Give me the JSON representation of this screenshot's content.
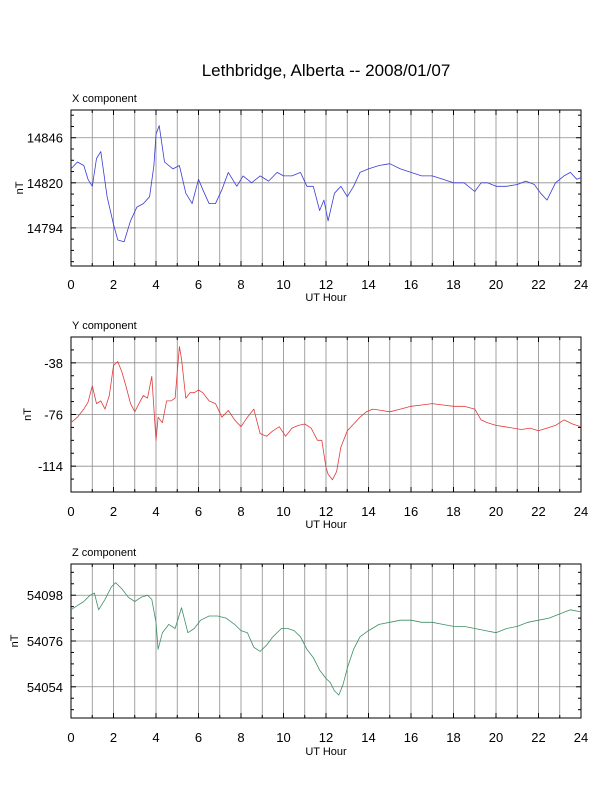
{
  "figure": {
    "title": "Lethbridge, Alberta -- 2008/01/07"
  },
  "chart_data": [
    {
      "type": "line",
      "title": "X component",
      "xlabel": "UT Hour",
      "ylabel": "nT",
      "xlim": [
        0,
        24
      ],
      "ylim": [
        14772,
        14862
      ],
      "xticks": [
        0,
        2,
        4,
        6,
        8,
        10,
        12,
        14,
        16,
        18,
        20,
        22,
        24
      ],
      "yticks": [
        14794,
        14820,
        14846
      ],
      "grid": true,
      "color": "#3a3ad9",
      "series": [
        {
          "x": [
            0,
            0.3,
            0.6,
            0.8,
            1.0,
            1.2,
            1.4,
            1.7,
            2.0,
            2.2,
            2.5,
            2.8,
            3.1,
            3.4,
            3.7,
            3.9,
            4.0,
            4.15,
            4.4,
            4.8,
            5.1,
            5.4,
            5.7,
            6.0,
            6.2,
            6.5,
            6.8,
            7.1,
            7.4,
            7.8,
            8.1,
            8.5,
            8.9,
            9.3,
            9.7,
            10.0,
            10.4,
            10.8,
            11.1,
            11.4,
            11.7,
            11.9,
            12.1,
            12.4,
            12.7,
            13.0,
            13.3,
            13.6,
            14.0,
            14.5,
            15.0,
            15.5,
            16.0,
            16.5,
            17.0,
            17.5,
            18.0,
            18.5,
            19.0,
            19.3,
            19.6,
            20.0,
            20.5,
            21.0,
            21.4,
            21.8,
            22.1,
            22.4,
            22.8,
            23.2,
            23.5,
            23.8,
            24.0
          ],
          "y": [
            14828,
            14832,
            14830,
            14822,
            14818,
            14834,
            14838,
            14812,
            14796,
            14787,
            14786,
            14798,
            14806,
            14808,
            14812,
            14830,
            14848,
            14853,
            14832,
            14828,
            14830,
            14814,
            14808,
            14822,
            14816,
            14808,
            14808,
            14816,
            14826,
            14818,
            14824,
            14820,
            14824,
            14821,
            14826,
            14824,
            14824,
            14826,
            14818,
            14818,
            14804,
            14810,
            14798,
            14814,
            14818,
            14812,
            14818,
            14826,
            14828,
            14830,
            14831,
            14828,
            14826,
            14824,
            14824,
            14822,
            14820,
            14820,
            14815,
            14820,
            14820,
            14818,
            14818,
            14819,
            14821,
            14819,
            14814,
            14810,
            14820,
            14824,
            14826,
            14822,
            14823
          ]
        }
      ]
    },
    {
      "type": "line",
      "title": "Y component",
      "xlabel": "UT Hour",
      "ylabel": "nT",
      "xlim": [
        0,
        24
      ],
      "ylim": [
        -133,
        -19
      ],
      "xticks": [
        0,
        2,
        4,
        6,
        8,
        10,
        12,
        14,
        16,
        18,
        20,
        22,
        24
      ],
      "yticks": [
        -114,
        -76,
        -38
      ],
      "grid": true,
      "color": "#e23a3a",
      "series": [
        {
          "x": [
            0,
            0.3,
            0.6,
            0.8,
            1.0,
            1.2,
            1.4,
            1.6,
            1.8,
            2.0,
            2.2,
            2.4,
            2.6,
            2.8,
            3.0,
            3.2,
            3.4,
            3.6,
            3.8,
            4.0,
            4.1,
            4.3,
            4.5,
            4.7,
            4.9,
            5.1,
            5.2,
            5.4,
            5.6,
            5.8,
            6.0,
            6.2,
            6.5,
            6.8,
            7.1,
            7.4,
            7.7,
            8.0,
            8.3,
            8.6,
            8.9,
            9.2,
            9.5,
            9.8,
            10.1,
            10.4,
            10.7,
            11.0,
            11.3,
            11.6,
            11.8,
            12.0,
            12.1,
            12.3,
            12.5,
            12.7,
            13.0,
            13.3,
            13.6,
            13.9,
            14.2,
            14.6,
            15.0,
            15.5,
            16.0,
            16.5,
            17.0,
            17.5,
            18.0,
            18.5,
            19.0,
            19.3,
            19.6,
            20.0,
            20.4,
            20.8,
            21.2,
            21.6,
            22.0,
            22.4,
            22.8,
            23.2,
            23.6,
            24.0
          ],
          "y": [
            -82,
            -78,
            -72,
            -67,
            -55,
            -68,
            -66,
            -72,
            -62,
            -40,
            -37,
            -45,
            -56,
            -68,
            -74,
            -68,
            -62,
            -64,
            -48,
            -95,
            -78,
            -82,
            -66,
            -66,
            -64,
            -26,
            -35,
            -64,
            -60,
            -60,
            -58,
            -60,
            -66,
            -68,
            -78,
            -73,
            -80,
            -85,
            -78,
            -72,
            -90,
            -92,
            -88,
            -85,
            -92,
            -86,
            -84,
            -83,
            -86,
            -95,
            -95,
            -115,
            -120,
            -124,
            -118,
            -100,
            -88,
            -83,
            -78,
            -74,
            -72,
            -73,
            -74,
            -72,
            -70,
            -69,
            -68,
            -69,
            -70,
            -70,
            -72,
            -80,
            -82,
            -84,
            -85,
            -86,
            -87,
            -86,
            -88,
            -86,
            -84,
            -80,
            -83,
            -85
          ]
        }
      ]
    },
    {
      "type": "line",
      "title": "Z component",
      "xlabel": "UT Hour",
      "ylabel": "nT",
      "xlim": [
        0,
        24
      ],
      "ylim": [
        54039,
        54113
      ],
      "xticks": [
        0,
        2,
        4,
        6,
        8,
        10,
        12,
        14,
        16,
        18,
        20,
        22,
        24
      ],
      "yticks": [
        54054,
        54076,
        54098
      ],
      "grid": true,
      "color": "#3f8f66",
      "series": [
        {
          "x": [
            0,
            0.3,
            0.6,
            0.9,
            1.1,
            1.3,
            1.6,
            1.9,
            2.1,
            2.4,
            2.7,
            3.0,
            3.3,
            3.6,
            3.8,
            4.0,
            4.1,
            4.3,
            4.6,
            4.9,
            5.2,
            5.5,
            5.8,
            6.1,
            6.5,
            6.9,
            7.3,
            7.7,
            8.0,
            8.3,
            8.6,
            8.9,
            9.2,
            9.5,
            9.9,
            10.2,
            10.5,
            10.8,
            11.1,
            11.4,
            11.7,
            12.0,
            12.2,
            12.4,
            12.6,
            12.8,
            13.0,
            13.3,
            13.6,
            14.0,
            14.5,
            15.0,
            15.5,
            16.0,
            16.5,
            17.0,
            17.5,
            18.0,
            18.5,
            19.0,
            19.5,
            20.0,
            20.5,
            21.0,
            21.5,
            22.0,
            22.5,
            23.0,
            23.5,
            24.0
          ],
          "y": [
            54091,
            54093,
            54095,
            54098,
            54099,
            54091,
            54096,
            54102,
            54104,
            54101,
            54097,
            54095,
            54097,
            54098,
            54096,
            54085,
            54072,
            54080,
            54084,
            54082,
            54092,
            54080,
            54082,
            54086,
            54088,
            54088,
            54087,
            54084,
            54081,
            54080,
            54073,
            54071,
            54074,
            54078,
            54082,
            54082,
            54081,
            54078,
            54072,
            54068,
            54062,
            54058,
            54056,
            54052,
            54050,
            54055,
            54063,
            54072,
            54078,
            54081,
            54084,
            54085,
            54086,
            54086,
            54085,
            54085,
            54084,
            54083,
            54083,
            54082,
            54081,
            54080,
            54082,
            54083,
            54085,
            54086,
            54087,
            54089,
            54091,
            54090
          ]
        }
      ]
    }
  ]
}
